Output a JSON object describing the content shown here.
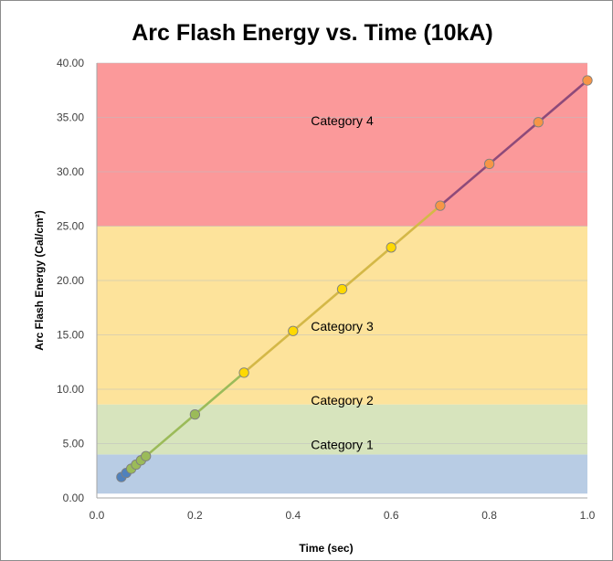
{
  "chart_data": {
    "type": "scatter",
    "title": "Arc Flash Energy vs. Time (10kA)",
    "xlabel": "Time (sec)",
    "ylabel": "Arc Flash Energy (Cal/cm²)",
    "xlim": [
      0.0,
      1.0
    ],
    "ylim": [
      0.0,
      40.0
    ],
    "x_ticks": [
      0.0,
      0.2,
      0.4,
      0.6,
      0.8,
      1.0
    ],
    "x_tick_labels": [
      "0.0",
      "0.2",
      "0.4",
      "0.6",
      "0.8",
      "1.0"
    ],
    "y_ticks": [
      0,
      5,
      10,
      15,
      20,
      25,
      30,
      35,
      40
    ],
    "y_tick_labels": [
      "0.00",
      "5.00",
      "10.00",
      "15.00",
      "20.00",
      "25.00",
      "30.00",
      "35.00",
      "40.00"
    ],
    "grid": "horizontal",
    "legend": "none",
    "bands": [
      {
        "label": "Category 1",
        "y_from": 0.4,
        "y_to": 4.0,
        "color": "#b8cce4"
      },
      {
        "label": "Category 2",
        "y_from": 4.0,
        "y_to": 8.6,
        "color": "#d7e4bd"
      },
      {
        "label": "Category 3",
        "y_from": 8.6,
        "y_to": 25.0,
        "color": "#fde39b"
      },
      {
        "label": "Category 4",
        "y_from": 25.0,
        "y_to": 40.0,
        "color": "#fb999a"
      }
    ],
    "series": [
      {
        "x": [
          0.05,
          0.06,
          0.07,
          0.08,
          0.09,
          0.1,
          0.2,
          0.3,
          0.4,
          0.5,
          0.6,
          0.7,
          0.8,
          0.9,
          1.0
        ],
        "y": [
          1.92,
          2.3,
          2.69,
          3.07,
          3.46,
          3.84,
          7.68,
          11.52,
          15.36,
          19.2,
          23.04,
          26.88,
          30.72,
          34.56,
          38.4
        ],
        "marker_colors": [
          "#4f81bd",
          "#4f81bd",
          "#9bbb59",
          "#9bbb59",
          "#9bbb59",
          "#9bbb59",
          "#9bbb59",
          "#ffd900",
          "#ffd900",
          "#ffd900",
          "#ffd900",
          "#f79646",
          "#f79646",
          "#f79646",
          "#f79646"
        ],
        "line_colors": [
          "#4f81bd",
          "#9bbb59",
          "#d4b847",
          "#8e4a7a"
        ]
      }
    ]
  }
}
